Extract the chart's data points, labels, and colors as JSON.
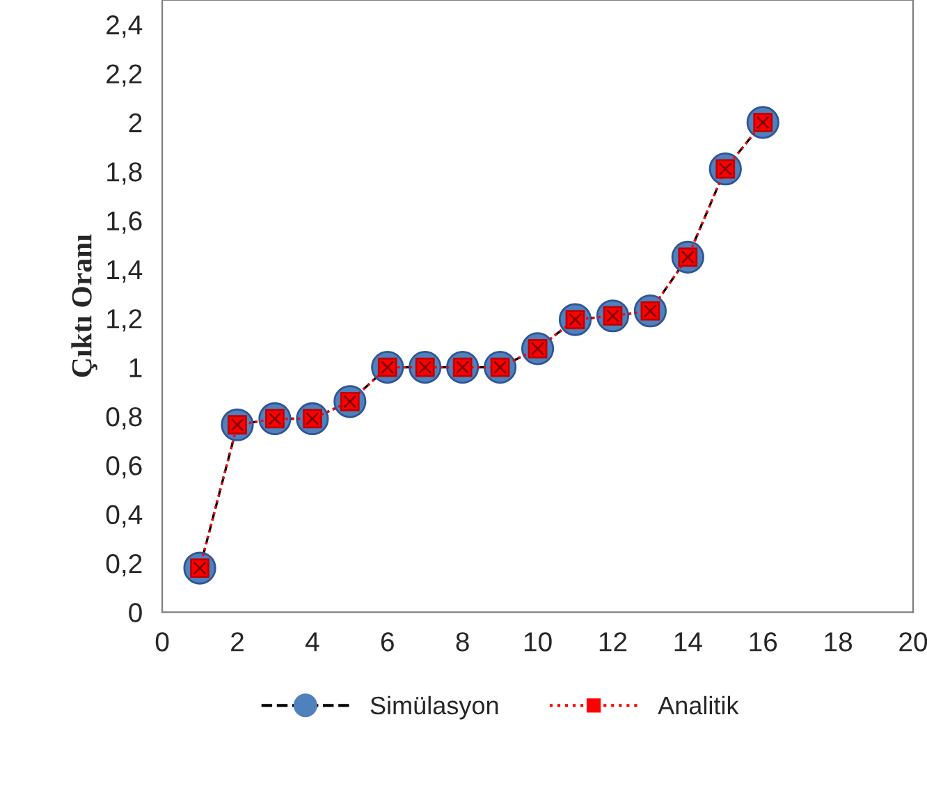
{
  "chart_data": {
    "type": "line",
    "ylabel": "Çıktı Oranı",
    "x": [
      1,
      2,
      3,
      4,
      5,
      6,
      7,
      8,
      9,
      10,
      11,
      12,
      13,
      14,
      15,
      16
    ],
    "series": [
      {
        "name": "Simülasyon",
        "color": "#4f81bd",
        "marker": "circle",
        "line_style": "dashed",
        "values": [
          0.18,
          0.765,
          0.79,
          0.79,
          0.86,
          1.0,
          1.0,
          1.0,
          1.0,
          1.076,
          1.195,
          1.21,
          1.23,
          1.45,
          1.81,
          2.0
        ]
      },
      {
        "name": "Analitik",
        "color": "#ff0000",
        "marker": "square",
        "line_style": "dotted",
        "values": [
          0.18,
          0.765,
          0.79,
          0.79,
          0.86,
          1.0,
          1.0,
          1.0,
          1.0,
          1.076,
          1.195,
          1.21,
          1.23,
          1.45,
          1.81,
          2.0
        ]
      }
    ],
    "xlim": [
      0,
      20
    ],
    "xticks": [
      0,
      2,
      4,
      6,
      8,
      10,
      12,
      14,
      16,
      18,
      20
    ],
    "ylim": [
      0,
      2.5
    ],
    "yticks": [
      0,
      {
        "value": 0.2,
        "label": "0,2"
      },
      {
        "value": 0.4,
        "label": "0,4"
      },
      {
        "value": 0.6,
        "label": "0,6"
      },
      {
        "value": 0.8,
        "label": "0,8"
      },
      1,
      {
        "value": 1.2,
        "label": "1,2"
      },
      {
        "value": 1.4,
        "label": "1,4"
      },
      {
        "value": 1.6,
        "label": "1,6"
      },
      {
        "value": 1.8,
        "label": "1,8"
      },
      2,
      {
        "value": 2.2,
        "label": "2,2"
      },
      {
        "value": 2.4,
        "label": "2,4"
      }
    ],
    "grid": false,
    "legend": "bottom"
  }
}
